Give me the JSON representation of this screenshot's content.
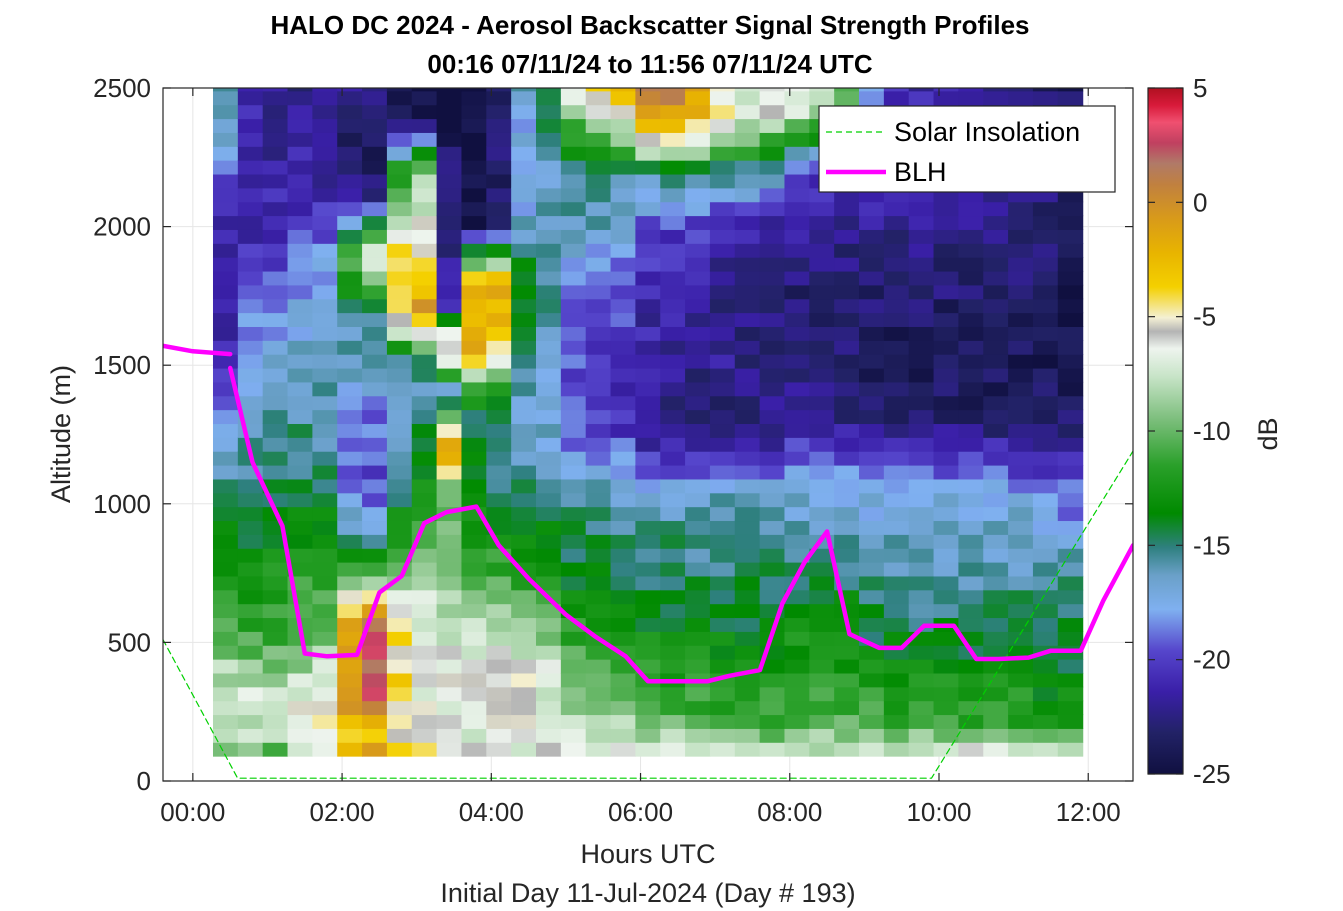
{
  "chart_data": {
    "type": "heatmap",
    "title": "HALO DC 2024 - Aerosol Backscatter Signal Strength Profiles",
    "subtitle": "00:16 07/11/24 to 11:56 07/11/24  UTC",
    "xlabel": "Hours UTC",
    "xlabel2": "Initial Day 11-Jul-2024 (Day # 193)",
    "ylabel": "Altitude (m)",
    "colorbar_label": "dB",
    "xlim": [
      -0.4,
      12.6
    ],
    "ylim": [
      0,
      2500
    ],
    "clim": [
      -25,
      5
    ],
    "x_ticks": [
      0,
      2,
      4,
      6,
      8,
      10,
      12
    ],
    "x_tick_labels": [
      "00:00",
      "02:00",
      "04:00",
      "06:00",
      "08:00",
      "10:00",
      "12:00"
    ],
    "y_ticks": [
      0,
      500,
      1000,
      1500,
      2000,
      2500
    ],
    "y_tick_labels": [
      "0",
      "500",
      "1000",
      "1500",
      "2000",
      "2500"
    ],
    "cbar_ticks": [
      5,
      0,
      -5,
      -10,
      -15,
      -20,
      -25
    ],
    "cbar_tick_labels": [
      "5",
      "0",
      "-5",
      "-10",
      "-15",
      "-20",
      "-25"
    ],
    "grid": true,
    "legend_position": "top-right",
    "heatmap": {
      "x_start": 0.27,
      "x_step": 0.333,
      "columns": 35,
      "y_start": 90,
      "y_step": 50,
      "rows": 49,
      "note_anchor_profiles": "dB value by altitude (m), per time (h)",
      "profiles": [
        {
          "t": 0.3,
          "pts": [
            [
              90,
              -9
            ],
            [
              150,
              -7
            ],
            [
              300,
              -7
            ],
            [
              450,
              -9
            ],
            [
              550,
              -11
            ],
            [
              700,
              -12
            ],
            [
              900,
              -14
            ],
            [
              1100,
              -16
            ],
            [
              1300,
              -18
            ],
            [
              1500,
              -22
            ],
            [
              1800,
              -22
            ],
            [
              2100,
              -21
            ],
            [
              2300,
              -16
            ],
            [
              2500,
              -15
            ]
          ]
        },
        {
          "t": 1.0,
          "pts": [
            [
              90,
              -12
            ],
            [
              150,
              -8
            ],
            [
              300,
              -7
            ],
            [
              450,
              -10
            ],
            [
              550,
              -12
            ],
            [
              700,
              -12
            ],
            [
              900,
              -14
            ],
            [
              1100,
              -15
            ],
            [
              1300,
              -16
            ],
            [
              1500,
              -17
            ],
            [
              1800,
              -19
            ],
            [
              2000,
              -21
            ],
            [
              2300,
              -22
            ],
            [
              2500,
              -22
            ]
          ]
        },
        {
          "t": 1.7,
          "pts": [
            [
              90,
              -7
            ],
            [
              150,
              -6
            ],
            [
              300,
              -6
            ],
            [
              450,
              -9
            ],
            [
              600,
              -11
            ],
            [
              800,
              -12
            ],
            [
              1000,
              -14
            ],
            [
              1200,
              -15
            ],
            [
              1400,
              -16
            ],
            [
              1600,
              -17
            ],
            [
              1900,
              -19
            ],
            [
              2100,
              -21
            ],
            [
              2500,
              -22
            ]
          ]
        },
        {
          "t": 2.4,
          "pts": [
            [
              90,
              2
            ],
            [
              150,
              -5
            ],
            [
              300,
              2
            ],
            [
              550,
              3
            ],
            [
              700,
              -7
            ],
            [
              900,
              -18
            ],
            [
              1100,
              -20
            ],
            [
              1300,
              -19
            ],
            [
              1500,
              -16
            ],
            [
              1700,
              -15
            ],
            [
              1900,
              -6
            ],
            [
              2100,
              -23
            ],
            [
              2300,
              -24
            ],
            [
              2500,
              -22
            ]
          ]
        },
        {
          "t": 3.05,
          "pts": [
            [
              90,
              -2
            ],
            [
              150,
              -6
            ],
            [
              300,
              -6
            ],
            [
              500,
              -7
            ],
            [
              700,
              -8
            ],
            [
              900,
              -10
            ],
            [
              1100,
              -14
            ],
            [
              1300,
              -15
            ],
            [
              1500,
              -16
            ],
            [
              1700,
              1
            ],
            [
              1800,
              -3
            ],
            [
              2000,
              -5
            ],
            [
              2200,
              -8
            ],
            [
              2400,
              -25
            ],
            [
              2500,
              -25
            ]
          ]
        },
        {
          "t": 3.55,
          "pts": [
            [
              90,
              -7
            ],
            [
              200,
              -6
            ],
            [
              500,
              -7
            ],
            [
              800,
              -9
            ],
            [
              1000,
              -11
            ],
            [
              1050,
              -9
            ],
            [
              1200,
              2
            ],
            [
              1300,
              -6
            ],
            [
              1400,
              -20
            ],
            [
              1500,
              -6
            ],
            [
              1600,
              -3
            ],
            [
              1700,
              -24
            ],
            [
              1900,
              -25
            ],
            [
              2500,
              -25
            ]
          ]
        },
        {
          "t": 3.85,
          "pts": [
            [
              90,
              -7
            ],
            [
              300,
              -6
            ],
            [
              500,
              -7
            ],
            [
              700,
              -10
            ],
            [
              900,
              -13
            ],
            [
              1100,
              -15
            ],
            [
              1300,
              -16
            ],
            [
              1500,
              -4
            ],
            [
              1700,
              2
            ],
            [
              1800,
              2
            ],
            [
              1900,
              -10
            ],
            [
              2000,
              -25
            ],
            [
              2300,
              -25
            ],
            [
              2500,
              -25
            ]
          ]
        },
        {
          "t": 4.5,
          "pts": [
            [
              90,
              -7
            ],
            [
              200,
              -6
            ],
            [
              400,
              -6
            ],
            [
              600,
              -10
            ],
            [
              800,
              -12
            ],
            [
              1000,
              -15
            ],
            [
              1200,
              -16
            ],
            [
              1400,
              -17
            ],
            [
              1600,
              -16
            ],
            [
              1800,
              -14
            ],
            [
              2000,
              -16
            ],
            [
              2200,
              -18
            ],
            [
              2500,
              -16
            ]
          ]
        },
        {
          "t": 5.3,
          "pts": [
            [
              90,
              -7
            ],
            [
              200,
              -8
            ],
            [
              350,
              -10
            ],
            [
              500,
              -12
            ],
            [
              700,
              -14
            ],
            [
              900,
              -15
            ],
            [
              1100,
              -17
            ],
            [
              1300,
              -20
            ],
            [
              1500,
              -20
            ],
            [
              1800,
              -19
            ],
            [
              2000,
              -16
            ],
            [
              2200,
              -15
            ],
            [
              2500,
              -5
            ]
          ]
        },
        {
          "t": 6.3,
          "pts": [
            [
              90,
              -6
            ],
            [
              200,
              -10
            ],
            [
              400,
              -12
            ],
            [
              600,
              -14
            ],
            [
              800,
              -15
            ],
            [
              1000,
              -16
            ],
            [
              1150,
              -20
            ],
            [
              1300,
              -23
            ],
            [
              1500,
              -22
            ],
            [
              1800,
              -21
            ],
            [
              2000,
              -20
            ],
            [
              2200,
              -15
            ],
            [
              2300,
              -5
            ],
            [
              2500,
              2
            ]
          ]
        },
        {
          "t": 7.3,
          "pts": [
            [
              90,
              -7
            ],
            [
              200,
              -11
            ],
            [
              400,
              -13
            ],
            [
              600,
              -14
            ],
            [
              800,
              -15
            ],
            [
              1000,
              -16
            ],
            [
              1100,
              -19
            ],
            [
              1200,
              -21
            ],
            [
              1300,
              -23
            ],
            [
              1500,
              -22
            ],
            [
              1800,
              -23
            ],
            [
              2000,
              -21
            ],
            [
              2200,
              -15
            ],
            [
              2400,
              -6
            ],
            [
              2500,
              -7
            ]
          ]
        },
        {
          "t": 8.3,
          "pts": [
            [
              90,
              -7
            ],
            [
              200,
              -10
            ],
            [
              400,
              -12
            ],
            [
              600,
              -13
            ],
            [
              800,
              -15
            ],
            [
              1000,
              -17
            ],
            [
              1150,
              -19
            ],
            [
              1300,
              -22
            ],
            [
              1500,
              -23
            ],
            [
              1800,
              -23
            ],
            [
              2000,
              -22
            ],
            [
              2200,
              -20
            ],
            [
              2400,
              -8
            ],
            [
              2500,
              -6
            ]
          ]
        },
        {
          "t": 9.4,
          "pts": [
            [
              90,
              -6
            ],
            [
              200,
              -11
            ],
            [
              400,
              -13
            ],
            [
              600,
              -15
            ],
            [
              800,
              -16
            ],
            [
              1000,
              -17
            ],
            [
              1100,
              -19
            ],
            [
              1300,
              -23
            ],
            [
              1500,
              -24
            ],
            [
              1800,
              -23
            ],
            [
              2000,
              -22
            ],
            [
              2200,
              -21
            ],
            [
              2500,
              -21
            ]
          ]
        },
        {
          "t": 10.6,
          "pts": [
            [
              90,
              -6
            ],
            [
              200,
              -11
            ],
            [
              400,
              -13
            ],
            [
              600,
              -15
            ],
            [
              800,
              -16
            ],
            [
              1000,
              -17
            ],
            [
              1100,
              -19
            ],
            [
              1300,
              -23
            ],
            [
              1500,
              -24
            ],
            [
              1800,
              -23
            ],
            [
              2000,
              -22
            ],
            [
              2200,
              -22
            ],
            [
              2500,
              -22
            ]
          ]
        },
        {
          "t": 11.9,
          "pts": [
            [
              90,
              -6
            ],
            [
              200,
              -12
            ],
            [
              400,
              -14
            ],
            [
              600,
              -15
            ],
            [
              800,
              -16
            ],
            [
              900,
              -18
            ],
            [
              1000,
              -19
            ],
            [
              1100,
              -20
            ],
            [
              1300,
              -23
            ],
            [
              1500,
              -24
            ],
            [
              1800,
              -24
            ],
            [
              2000,
              -23
            ],
            [
              2200,
              -23
            ],
            [
              2500,
              -24
            ]
          ]
        }
      ]
    },
    "series": [
      {
        "name": "Solar Insolation",
        "style": "dashed",
        "color": "#00d000",
        "x": [
          -0.4,
          0.6,
          9.9,
          12.6
        ],
        "y": [
          510,
          10,
          10,
          1190
        ]
      },
      {
        "name": "BLH",
        "style": "solid",
        "color": "#ff00ff",
        "segments": [
          {
            "x": [
              -0.4,
              0.0,
              0.5
            ],
            "y": [
              1570,
              1550,
              1540
            ]
          },
          {
            "x": [
              0.5,
              0.8,
              1.2,
              1.5,
              1.8,
              2.2,
              2.5,
              2.8,
              3.1,
              3.4,
              3.8,
              4.1,
              4.5,
              5.0,
              5.4,
              5.8,
              6.1,
              6.5,
              6.9,
              7.2,
              7.6,
              7.9,
              8.2,
              8.5,
              8.8,
              9.2,
              9.5,
              9.8,
              10.2,
              10.5,
              10.8,
              11.2,
              11.5,
              11.9,
              12.2,
              12.6
            ],
            "y": [
              1490,
              1150,
              920,
              460,
              450,
              455,
              680,
              740,
              930,
              970,
              990,
              850,
              730,
              600,
              520,
              450,
              360,
              360,
              360,
              380,
              400,
              640,
              790,
              900,
              530,
              480,
              480,
              560,
              560,
              440,
              440,
              445,
              470,
              470,
              650,
              850
            ]
          }
        ]
      }
    ],
    "colormap": [
      [
        0.0,
        "#101040"
      ],
      [
        0.06,
        "#222266"
      ],
      [
        0.12,
        "#3a1fa8"
      ],
      [
        0.18,
        "#5646cc"
      ],
      [
        0.24,
        "#7fb0f0"
      ],
      [
        0.29,
        "#6aa0c8"
      ],
      [
        0.33,
        "#2f8080"
      ],
      [
        0.38,
        "#008a00"
      ],
      [
        0.45,
        "#2aa02a"
      ],
      [
        0.52,
        "#80c080"
      ],
      [
        0.58,
        "#c8e4c8"
      ],
      [
        0.62,
        "#eef4ee"
      ],
      [
        0.645,
        "#b4b4b4"
      ],
      [
        0.665,
        "#f4f0d4"
      ],
      [
        0.71,
        "#f4d000"
      ],
      [
        0.76,
        "#e8b400"
      ],
      [
        0.81,
        "#d89a1a"
      ],
      [
        0.86,
        "#c08040"
      ],
      [
        0.89,
        "#b07a68"
      ],
      [
        0.92,
        "#c04060"
      ],
      [
        0.95,
        "#f05070"
      ],
      [
        0.975,
        "#d81a3a"
      ],
      [
        1.0,
        "#b01020"
      ]
    ]
  }
}
